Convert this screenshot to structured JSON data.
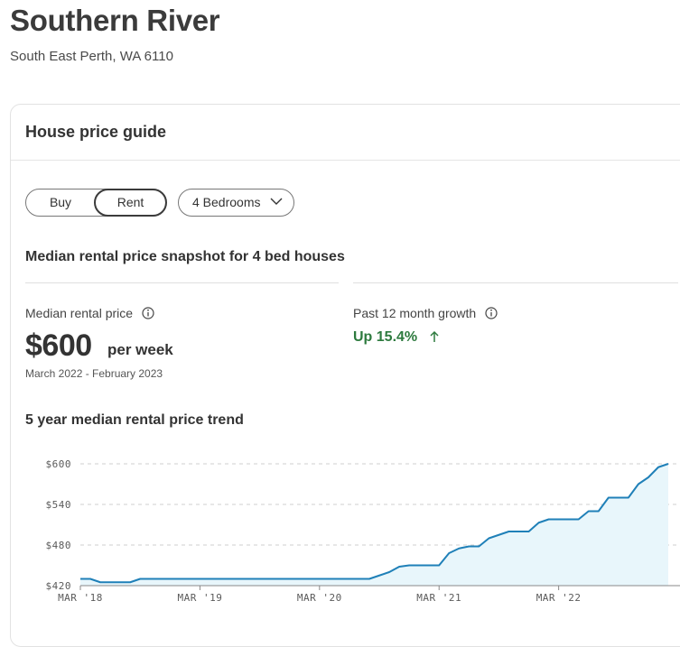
{
  "header": {
    "title": "Southern River",
    "subtitle": "South East Perth, WA 6110"
  },
  "card": {
    "title": "House price guide",
    "toggle": {
      "options": [
        "Buy",
        "Rent"
      ],
      "selected": "Rent"
    },
    "bedrooms_select": "4 Bedrooms",
    "snapshot_title": "Median rental price snapshot for 4 bed houses",
    "median": {
      "label": "Median rental price",
      "value": "$600",
      "unit": "per week",
      "period": "March 2022 - February 2023"
    },
    "growth": {
      "label": "Past 12 month growth",
      "value": "Up 15.4%",
      "color": "#2d7a3e"
    },
    "trend_title": "5 year median rental price trend"
  },
  "chart_data": {
    "type": "area",
    "line_color": "#1f80b8",
    "fill_color": "#e8f6fb",
    "y_ticks": [
      420,
      480,
      540,
      600
    ],
    "y_tick_labels": [
      "$420",
      "$480",
      "$540",
      "$600"
    ],
    "ylim": [
      420,
      600
    ],
    "x_tick_labels": [
      "MAR '18",
      "MAR '19",
      "MAR '20",
      "MAR '21",
      "MAR '22"
    ],
    "x_tick_months": [
      0,
      12,
      24,
      36,
      48
    ],
    "x_months": [
      0,
      1,
      2,
      3,
      4,
      5,
      6,
      7,
      8,
      9,
      10,
      11,
      12,
      13,
      14,
      15,
      16,
      17,
      18,
      19,
      20,
      21,
      22,
      23,
      24,
      25,
      26,
      27,
      28,
      29,
      30,
      31,
      32,
      33,
      34,
      35,
      36,
      37,
      38,
      39,
      40,
      41,
      42,
      43,
      44,
      45,
      46,
      47,
      48,
      49,
      50,
      51,
      52,
      53,
      54,
      55,
      56,
      57,
      58,
      59
    ],
    "values": [
      430,
      430,
      425,
      425,
      425,
      425,
      430,
      430,
      430,
      430,
      430,
      430,
      430,
      430,
      430,
      430,
      430,
      430,
      430,
      430,
      430,
      430,
      430,
      430,
      430,
      430,
      430,
      430,
      430,
      430,
      435,
      440,
      448,
      450,
      450,
      450,
      450,
      468,
      475,
      478,
      478,
      490,
      495,
      500,
      500,
      500,
      513,
      518,
      518,
      518,
      518,
      530,
      530,
      550,
      550,
      550,
      570,
      580,
      595,
      600
    ],
    "grid": true
  }
}
